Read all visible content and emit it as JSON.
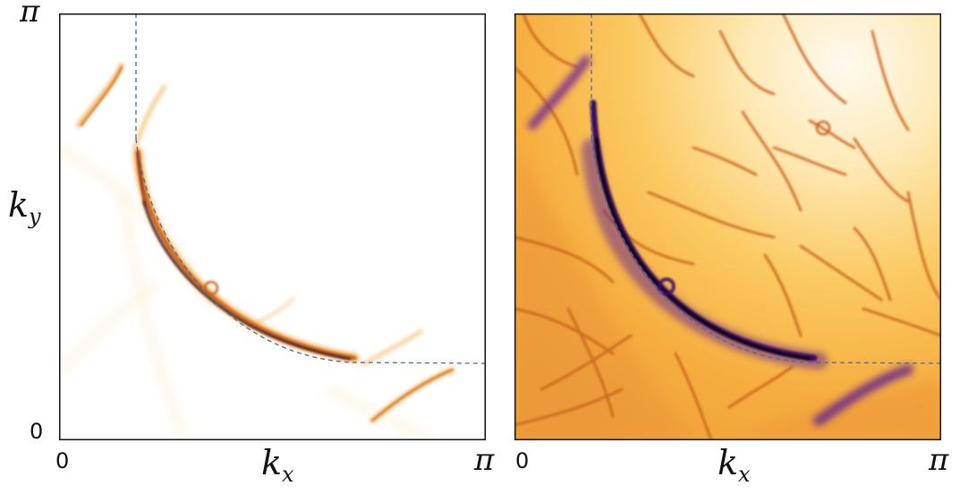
{
  "labels": {
    "left_y_top": "π",
    "left_y_zero": "0",
    "left_y_axis": "k",
    "left_y_axis_sub": "y",
    "left_x_zero": "0",
    "left_x_axis": "k",
    "left_x_axis_sub": "x",
    "left_x_pi": "π",
    "right_x_zero": "0",
    "right_x_axis": "k",
    "right_x_axis_sub": "x",
    "right_x_pi": "π"
  },
  "colors": {
    "colormap": [
      "#ffffff",
      "#fff6dc",
      "#fde3a0",
      "#f9b94e",
      "#e58a26",
      "#c05a18",
      "#7a2a8a",
      "#3a0f5e",
      "#000000"
    ],
    "reference_line": "#4a6aa8",
    "frame": "#111111"
  },
  "panels": [
    {
      "name": "left-spectral-map",
      "style": "narrow-broadening"
    },
    {
      "name": "right-spectral-map",
      "style": "log-scale-intensity"
    }
  ]
}
